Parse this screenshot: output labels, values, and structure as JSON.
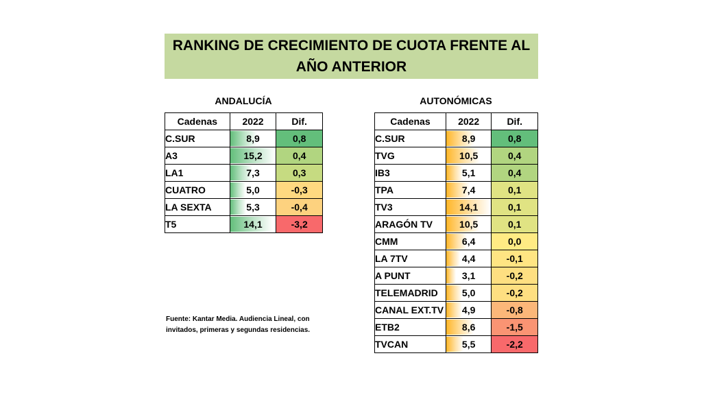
{
  "title": {
    "line1": "RANKING DE CRECIMIENTO DE CUOTA FRENTE AL",
    "line2": "AÑO ANTERIOR"
  },
  "andalucia": {
    "heading": "ANDALUCÍA",
    "columns": [
      "Cadenas",
      "2022",
      "Dif."
    ],
    "bar_color": "#63be7b",
    "rows": [
      {
        "name": "C.SUR",
        "v2022": "8,9",
        "dif": "0,8",
        "dif_color": "#63be7b"
      },
      {
        "name": "A3",
        "v2022": "15,2",
        "dif": "0,4",
        "dif_color": "#b1d580"
      },
      {
        "name": "LA1",
        "v2022": "7,3",
        "dif": "0,3",
        "dif_color": "#c6db81"
      },
      {
        "name": "CUATRO",
        "v2022": "5,0",
        "dif": "-0,3",
        "dif_color": "#fed980"
      },
      {
        "name": "LA SEXTA",
        "v2022": "5,3",
        "dif": "-0,4",
        "dif_color": "#fdd27f"
      },
      {
        "name": "T5",
        "v2022": "14,1",
        "dif": "-3,2",
        "dif_color": "#f8696b"
      }
    ]
  },
  "autonomicas": {
    "heading": "AUTONÓMICAS",
    "columns": [
      "Cadenas",
      "2022",
      "Dif."
    ],
    "bar_color": "#ffb628",
    "rows": [
      {
        "name": "C.SUR",
        "v2022": "8,9",
        "dif": "0,8",
        "dif_color": "#63be7b"
      },
      {
        "name": "TVG",
        "v2022": "10,5",
        "dif": "0,4",
        "dif_color": "#b1d580"
      },
      {
        "name": "IB3",
        "v2022": "5,1",
        "dif": "0,4",
        "dif_color": "#b1d580"
      },
      {
        "name": "TPA",
        "v2022": "7,4",
        "dif": "0,1",
        "dif_color": "#e0e383"
      },
      {
        "name": "TV3",
        "v2022": "14,1",
        "dif": "0,1",
        "dif_color": "#e0e383"
      },
      {
        "name": "ARAGÓN TV",
        "v2022": "10,5",
        "dif": "0,1",
        "dif_color": "#e0e383"
      },
      {
        "name": "CMM",
        "v2022": "6,4",
        "dif": "0,0",
        "dif_color": "#ffeb84"
      },
      {
        "name": "LA 7TV",
        "v2022": "4,4",
        "dif": "-0,1",
        "dif_color": "#ffe583"
      },
      {
        "name": "A PUNT",
        "v2022": "3,1",
        "dif": "-0,2",
        "dif_color": "#fedf81"
      },
      {
        "name": "TELEMADRID",
        "v2022": "5,0",
        "dif": "-0,2",
        "dif_color": "#fedf81"
      },
      {
        "name": "CANAL EXT.TV",
        "v2022": "4,9",
        "dif": "-0,8",
        "dif_color": "#fcb779"
      },
      {
        "name": "ETB2",
        "v2022": "8,6",
        "dif": "-1,5",
        "dif_color": "#fa9473"
      },
      {
        "name": "TVCAN",
        "v2022": "5,5",
        "dif": "-2,2",
        "dif_color": "#f8696b"
      }
    ]
  },
  "source": "Fuente: Kantar Media. Audiencia Lineal, con invitados, primeras y segundas residencias."
}
